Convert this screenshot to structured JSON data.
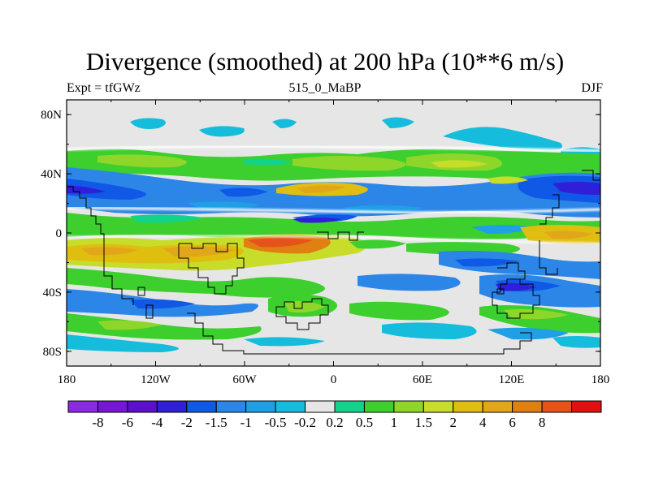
{
  "title": "Divergence (smoothed) at 200 hPa (10**6 m/s)",
  "subtitle_left": "Expt = tfGWz",
  "subtitle_center": "515_0_MaBP",
  "subtitle_right": "DJF",
  "lat_ticks": [
    {
      "value": 80,
      "label": "80N"
    },
    {
      "value": 40,
      "label": "40N"
    },
    {
      "value": 0,
      "label": "0"
    },
    {
      "value": -40,
      "label": "40S"
    },
    {
      "value": -80,
      "label": "80S"
    }
  ],
  "lon_ticks": [
    {
      "value": -180,
      "label": "180"
    },
    {
      "value": -120,
      "label": "120W"
    },
    {
      "value": -60,
      "label": "60W"
    },
    {
      "value": 0,
      "label": "0"
    },
    {
      "value": 60,
      "label": "60E"
    },
    {
      "value": 120,
      "label": "120E"
    },
    {
      "value": 180,
      "label": "180"
    }
  ],
  "colorbar": {
    "colors": [
      "#8a2be2",
      "#7418d6",
      "#5d0fd0",
      "#2f1fd8",
      "#1058e6",
      "#2b86e8",
      "#1fa0e6",
      "#16bcdc",
      "#e6e6e6",
      "#13d38a",
      "#3ccf2e",
      "#8fd62a",
      "#c8dc2a",
      "#e0be10",
      "#e1a71b",
      "#e07f12",
      "#e5531a",
      "#e31010"
    ],
    "labels": [
      "-8",
      "-6",
      "-4",
      "-2",
      "-1.5",
      "-1",
      "-0.5",
      "-0.2",
      "0.2",
      "0.5",
      "1",
      "1.5",
      "2",
      "4",
      "6",
      "8"
    ]
  },
  "map_background": "#e6e6e6"
}
